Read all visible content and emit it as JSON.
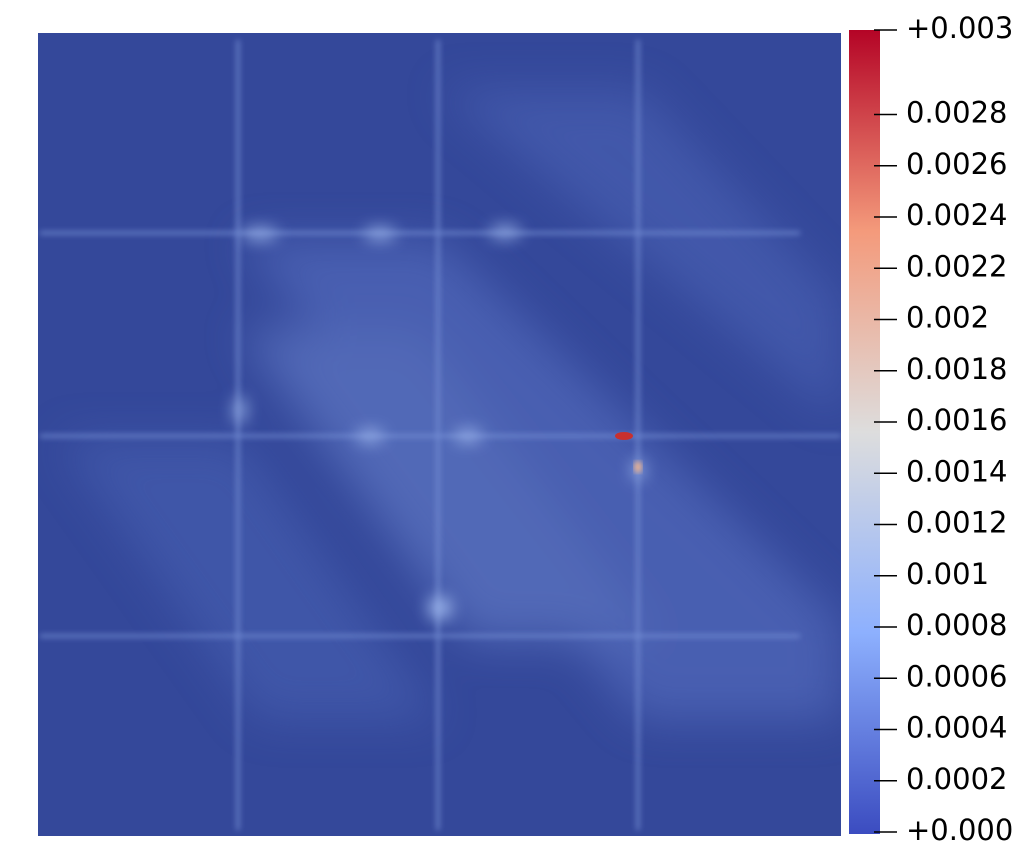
{
  "chart_data": {
    "type": "colormap",
    "colorbar": {
      "lim": [
        0,
        0.00313
      ],
      "ticks": [
        {
          "value": 0,
          "label": "+0.000"
        },
        0.0002,
        0.0004,
        0.0006,
        0.0008,
        0.001,
        0.0012,
        0.0014,
        0.0016,
        0.0018,
        0.002,
        0.0022,
        0.0024,
        0.0026,
        0.0028,
        {
          "value": 0.00313,
          "label": "+0.003"
        }
      ],
      "colors": [
        "#3b4cc0",
        "#8db0fe",
        "#dddddd",
        "#f49a7b",
        "#b40426"
      ]
    }
  }
}
